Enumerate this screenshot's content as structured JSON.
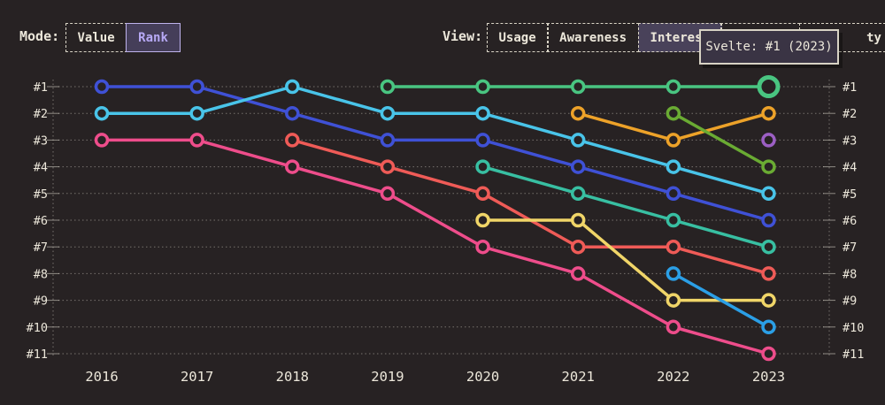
{
  "colors": {
    "background": "#272223",
    "text_cream": "#ece7da",
    "accent_purple": "#b7a9f5",
    "grid": "#d9d4c6"
  },
  "mode_control": {
    "label": "Mode:",
    "options": [
      {
        "label": "Value",
        "selected": false
      },
      {
        "label": "Rank",
        "selected": true
      }
    ]
  },
  "view_control": {
    "label": "View:",
    "options": [
      {
        "label": "Usage",
        "selected": false
      },
      {
        "label": "Awareness",
        "selected": false
      },
      {
        "label": "Interest",
        "selected": true
      },
      {
        "label": "",
        "selected": false,
        "occluded_by_tooltip": true
      },
      {
        "label": "ty",
        "selected": false,
        "occluded_by_tooltip": true
      }
    ]
  },
  "tooltip": {
    "text": "Svelte: #1 (2023)"
  },
  "chart_data": {
    "type": "line",
    "subtype": "bump-rank-chart",
    "x": [
      2016,
      2017,
      2018,
      2019,
      2020,
      2021,
      2022,
      2023
    ],
    "rank_labels": [
      "#1",
      "#2",
      "#3",
      "#4",
      "#5",
      "#6",
      "#7",
      "#8",
      "#9",
      "#10",
      "#11"
    ],
    "ylim": [
      1,
      11
    ],
    "grid": "dotted-horizontal",
    "legend": "none",
    "series": [
      {
        "name": "royal-blue-line",
        "color": "#3f51d6",
        "ranks": [
          1,
          1,
          2,
          3,
          3,
          4,
          5,
          6
        ]
      },
      {
        "name": "cyan-line",
        "color": "#49c4e9",
        "ranks": [
          2,
          2,
          1,
          2,
          2,
          3,
          4,
          5
        ]
      },
      {
        "name": "pink-line",
        "color": "#ee4d8b",
        "ranks": [
          3,
          3,
          4,
          5,
          7,
          8,
          10,
          11
        ]
      },
      {
        "name": "coral-red-line",
        "color": "#ef5b57",
        "ranks": [
          null,
          null,
          3,
          4,
          5,
          7,
          7,
          8
        ]
      },
      {
        "name": "green-line-svelte",
        "color": "#49c581",
        "ranks": [
          null,
          null,
          null,
          1,
          1,
          1,
          1,
          1
        ],
        "highlight_last": true,
        "tooltip": "Svelte: #1 (2023)"
      },
      {
        "name": "teal-line",
        "color": "#38bfa2",
        "ranks": [
          null,
          null,
          null,
          null,
          4,
          5,
          6,
          7
        ]
      },
      {
        "name": "yellow-line",
        "color": "#f0d568",
        "ranks": [
          null,
          null,
          null,
          null,
          6,
          6,
          9,
          9
        ]
      },
      {
        "name": "orange-line",
        "color": "#eda229",
        "ranks": [
          null,
          null,
          null,
          null,
          null,
          2,
          3,
          2
        ]
      },
      {
        "name": "olive-green-line",
        "color": "#6aab33",
        "ranks": [
          null,
          null,
          null,
          null,
          null,
          null,
          2,
          4
        ]
      },
      {
        "name": "sky-blue-line",
        "color": "#2b9fe6",
        "ranks": [
          null,
          null,
          null,
          null,
          null,
          null,
          8,
          10
        ]
      },
      {
        "name": "purple-point",
        "color": "#9c5fc4",
        "ranks": [
          null,
          null,
          null,
          null,
          null,
          null,
          null,
          3
        ]
      }
    ]
  }
}
